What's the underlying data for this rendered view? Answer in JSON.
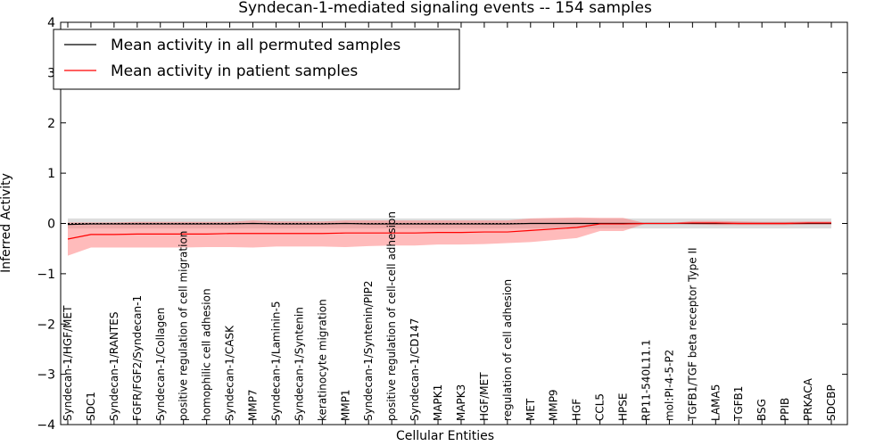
{
  "chart_data": {
    "type": "line",
    "title": "Syndecan-1-mediated signaling events -- 154 samples",
    "xlabel": "Cellular Entities",
    "ylabel": "Inferred Activity",
    "ylim": [
      -4,
      4
    ],
    "yticks": [
      -4,
      -3,
      -2,
      -1,
      0,
      1,
      2,
      3,
      4
    ],
    "ytick_labels": [
      "−4",
      "−3",
      "−2",
      "−1",
      "0",
      "1",
      "2",
      "3",
      "4"
    ],
    "grid": false,
    "legend_position": "top-left",
    "categories": [
      "Syndecan-1/HGF/MET",
      "SDC1",
      "Syndecan-1/RANTES",
      "FGFR/FGF2/Syndecan-1",
      "Syndecan-1/Collagen",
      "positive regulation of cell migration",
      "homophilic cell adhesion",
      "Syndecan-1/CASK",
      "MMP7",
      "Syndecan-1/Laminin-5",
      "Syndecan-1/Syntenin",
      "keratinocyte migration",
      "MMP1",
      "Syndecan-1/Syntenin/PIP2",
      "positive regulation of cell-cell adhesion",
      "Syndecan-1/CD147",
      "MAPK1",
      "MAPK3",
      "HGF/MET",
      "regulation of cell adhesion",
      "MET",
      "MMP9",
      "HGF",
      "CCL5",
      "HPSE",
      "RP11-540L11.1",
      "mol:PI-4-5-P2",
      "TGFB1/TGF beta receptor Type II",
      "LAMA5",
      "TGFB1",
      "BSG",
      "PPIB",
      "PRKACA",
      "SDCBP"
    ],
    "series": [
      {
        "name": "Mean activity in all permuted samples",
        "color": "#000000",
        "band_color": "#bbbbbb",
        "values": [
          -0.02,
          -0.01,
          -0.01,
          -0.01,
          -0.01,
          -0.01,
          -0.01,
          -0.01,
          0.0,
          -0.01,
          -0.01,
          -0.01,
          0.0,
          -0.01,
          -0.01,
          -0.01,
          -0.01,
          -0.01,
          -0.01,
          -0.01,
          0.0,
          0.0,
          0.0,
          0.0,
          0.0,
          0.0,
          0.0,
          0.0,
          0.0,
          0.0,
          0.0,
          0.0,
          0.0,
          0.0
        ],
        "lower": [
          -0.1,
          -0.1,
          -0.1,
          -0.1,
          -0.1,
          -0.1,
          -0.1,
          -0.1,
          -0.1,
          -0.1,
          -0.1,
          -0.1,
          -0.1,
          -0.1,
          -0.1,
          -0.1,
          -0.1,
          -0.1,
          -0.1,
          -0.1,
          -0.1,
          -0.1,
          -0.1,
          -0.1,
          -0.1,
          -0.1,
          -0.1,
          -0.1,
          -0.1,
          -0.1,
          -0.1,
          -0.1,
          -0.1,
          -0.1
        ],
        "upper": [
          0.1,
          0.1,
          0.1,
          0.1,
          0.1,
          0.1,
          0.1,
          0.1,
          0.1,
          0.1,
          0.1,
          0.1,
          0.1,
          0.1,
          0.1,
          0.1,
          0.1,
          0.1,
          0.1,
          0.1,
          0.1,
          0.1,
          0.1,
          0.1,
          0.1,
          0.1,
          0.1,
          0.1,
          0.1,
          0.1,
          0.1,
          0.1,
          0.1,
          0.1
        ]
      },
      {
        "name": "Mean activity in patient samples",
        "color": "#ff0000",
        "band_color": "#ff7777",
        "values": [
          -0.31,
          -0.22,
          -0.22,
          -0.21,
          -0.21,
          -0.21,
          -0.21,
          -0.2,
          -0.2,
          -0.2,
          -0.2,
          -0.2,
          -0.19,
          -0.19,
          -0.19,
          -0.19,
          -0.18,
          -0.18,
          -0.17,
          -0.17,
          -0.14,
          -0.11,
          -0.08,
          -0.01,
          -0.01,
          0.0,
          0.0,
          0.01,
          0.01,
          0.0,
          0.0,
          0.0,
          0.01,
          0.01
        ],
        "lower": [
          -0.64,
          -0.48,
          -0.48,
          -0.48,
          -0.48,
          -0.48,
          -0.47,
          -0.47,
          -0.48,
          -0.46,
          -0.46,
          -0.46,
          -0.47,
          -0.45,
          -0.44,
          -0.44,
          -0.42,
          -0.42,
          -0.41,
          -0.39,
          -0.37,
          -0.33,
          -0.29,
          -0.15,
          -0.15,
          0.0,
          0.0,
          -0.02,
          -0.03,
          -0.03,
          -0.03,
          -0.03,
          -0.02,
          -0.02
        ],
        "upper": [
          0.02,
          0.02,
          0.02,
          0.03,
          0.03,
          0.03,
          0.03,
          0.03,
          0.06,
          0.04,
          0.04,
          0.04,
          0.06,
          0.06,
          0.06,
          0.06,
          0.06,
          0.06,
          0.06,
          0.06,
          0.1,
          0.11,
          0.12,
          0.11,
          0.11,
          0.0,
          0.0,
          0.05,
          0.05,
          0.04,
          0.03,
          0.03,
          0.04,
          0.04
        ]
      }
    ]
  }
}
